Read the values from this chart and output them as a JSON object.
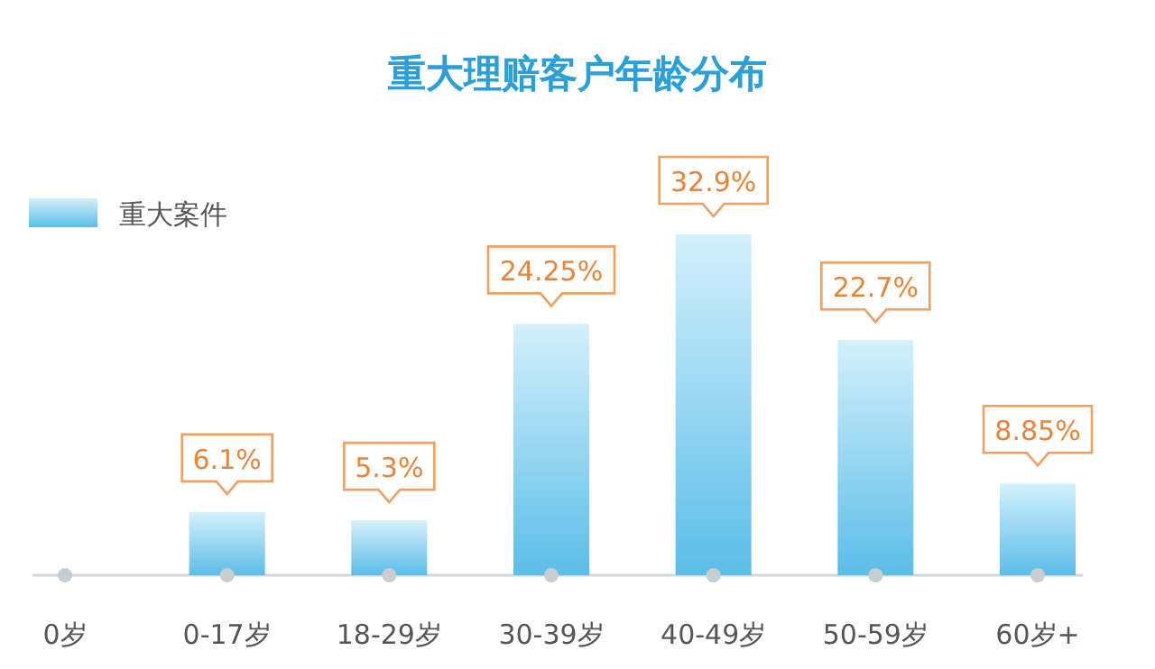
{
  "chart_data": {
    "type": "bar",
    "title": "重大理赔客户年龄分布",
    "categories": [
      "0岁",
      "0-17岁",
      "18-29岁",
      "30-39岁",
      "40-49岁",
      "50-59岁",
      "60岁+"
    ],
    "series": [
      {
        "name": "重大案件",
        "color": "#5bbde8",
        "values": [
          null,
          6.1,
          5.3,
          24.25,
          32.9,
          22.7,
          8.85
        ],
        "value_labels": [
          null,
          "6.1%",
          "5.3%",
          "24.25%",
          "32.9%",
          "22.7%",
          "8.85%"
        ]
      }
    ],
    "legend": "top left"
  }
}
